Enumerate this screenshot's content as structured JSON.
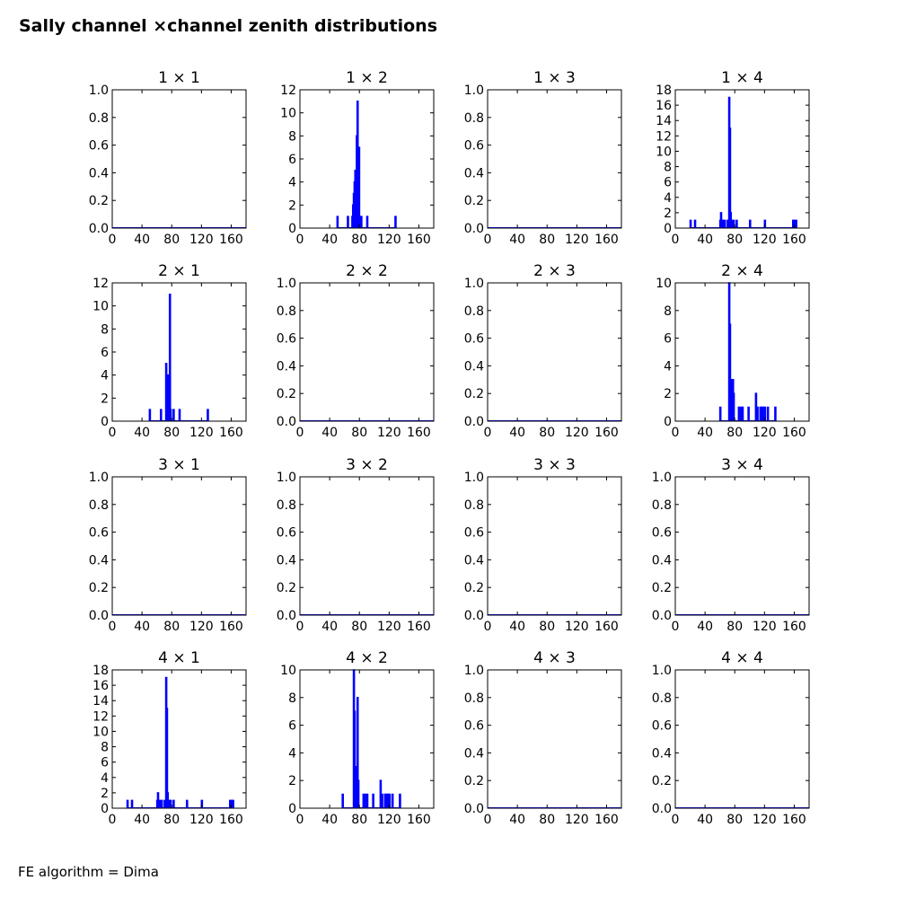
{
  "figure": {
    "title": "Sally channel ×channel zenith distributions",
    "footer": "FE algorithm = Dima"
  },
  "colors": {
    "hist": "#0000ff",
    "axis": "#000000"
  },
  "chart_data": [
    {
      "type": "bar",
      "title": "1  × 1",
      "xlim": [
        0,
        180
      ],
      "ylim": [
        0,
        1.0
      ],
      "xticks": [
        "0",
        "40",
        "80",
        "120",
        "160"
      ],
      "yticks": [
        "0.0",
        "0.2",
        "0.4",
        "0.6",
        "0.8",
        "1.0"
      ],
      "bins": []
    },
    {
      "type": "bar",
      "title": "1  × 2",
      "xlim": [
        0,
        180
      ],
      "ylim": [
        0,
        12
      ],
      "xticks": [
        "0",
        "40",
        "80",
        "120",
        "160"
      ],
      "yticks": [
        "0",
        "2",
        "4",
        "6",
        "8",
        "10",
        "12"
      ],
      "bins": [
        [
          50,
          1
        ],
        [
          64,
          1
        ],
        [
          70,
          1
        ],
        [
          71,
          2
        ],
        [
          72,
          3
        ],
        [
          73,
          4
        ],
        [
          74,
          5
        ],
        [
          75,
          4
        ],
        [
          76,
          8
        ],
        [
          77,
          11
        ],
        [
          78,
          6
        ],
        [
          79,
          7
        ],
        [
          80,
          1
        ],
        [
          82,
          1
        ],
        [
          90,
          1
        ],
        [
          128,
          1
        ]
      ]
    },
    {
      "type": "bar",
      "title": "1  × 3",
      "xlim": [
        0,
        180
      ],
      "ylim": [
        0,
        1.0
      ],
      "xticks": [
        "0",
        "40",
        "80",
        "120",
        "160"
      ],
      "yticks": [
        "0.0",
        "0.2",
        "0.4",
        "0.6",
        "0.8",
        "1.0"
      ],
      "bins": []
    },
    {
      "type": "bar",
      "title": "1  × 4",
      "xlim": [
        0,
        180
      ],
      "ylim": [
        0,
        18
      ],
      "xticks": [
        "0",
        "40",
        "80",
        "120",
        "160"
      ],
      "yticks": [
        "0",
        "2",
        "4",
        "6",
        "8",
        "10",
        "12",
        "14",
        "16",
        "18"
      ],
      "bins": [
        [
          20,
          1
        ],
        [
          26,
          1
        ],
        [
          60,
          1
        ],
        [
          61,
          2
        ],
        [
          62,
          1
        ],
        [
          64,
          1
        ],
        [
          66,
          1
        ],
        [
          70,
          1
        ],
        [
          72,
          17
        ],
        [
          73,
          13
        ],
        [
          74,
          2
        ],
        [
          76,
          1
        ],
        [
          78,
          1
        ],
        [
          82,
          1
        ],
        [
          100,
          1
        ],
        [
          120,
          1
        ],
        [
          158,
          1
        ],
        [
          160,
          1
        ],
        [
          162,
          1
        ]
      ]
    },
    {
      "type": "bar",
      "title": "2  × 1",
      "xlim": [
        0,
        180
      ],
      "ylim": [
        0,
        12
      ],
      "xticks": [
        "0",
        "40",
        "80",
        "120",
        "160"
      ],
      "yticks": [
        "0",
        "2",
        "4",
        "6",
        "8",
        "10",
        "12"
      ],
      "bins": [
        [
          50,
          1
        ],
        [
          65,
          1
        ],
        [
          72,
          5
        ],
        [
          73,
          1
        ],
        [
          74,
          4
        ],
        [
          75,
          3
        ],
        [
          77,
          11
        ],
        [
          78,
          1
        ],
        [
          82,
          1
        ],
        [
          90,
          1
        ],
        [
          128,
          1
        ]
      ]
    },
    {
      "type": "bar",
      "title": "2  × 2",
      "xlim": [
        0,
        180
      ],
      "ylim": [
        0,
        1.0
      ],
      "xticks": [
        "0",
        "40",
        "80",
        "120",
        "160"
      ],
      "yticks": [
        "0.0",
        "0.2",
        "0.4",
        "0.6",
        "0.8",
        "1.0"
      ],
      "bins": []
    },
    {
      "type": "bar",
      "title": "2  × 3",
      "xlim": [
        0,
        180
      ],
      "ylim": [
        0,
        1.0
      ],
      "xticks": [
        "0",
        "40",
        "80",
        "120",
        "160"
      ],
      "yticks": [
        "0.0",
        "0.2",
        "0.4",
        "0.6",
        "0.8",
        "1.0"
      ],
      "bins": []
    },
    {
      "type": "bar",
      "title": "2  × 4",
      "xlim": [
        0,
        180
      ],
      "ylim": [
        0,
        10
      ],
      "xticks": [
        "0",
        "40",
        "80",
        "120",
        "160"
      ],
      "yticks": [
        "0",
        "2",
        "4",
        "6",
        "8",
        "10"
      ],
      "bins": [
        [
          60,
          1
        ],
        [
          72,
          10
        ],
        [
          73,
          7
        ],
        [
          74,
          3
        ],
        [
          75,
          2
        ],
        [
          76,
          3
        ],
        [
          77,
          3
        ],
        [
          78,
          2
        ],
        [
          85,
          1
        ],
        [
          88,
          1
        ],
        [
          90,
          1
        ],
        [
          98,
          1
        ],
        [
          108,
          2
        ],
        [
          110,
          1
        ],
        [
          114,
          1
        ],
        [
          116,
          1
        ],
        [
          118,
          1
        ],
        [
          120,
          1
        ],
        [
          124,
          1
        ],
        [
          134,
          1
        ]
      ]
    },
    {
      "type": "bar",
      "title": "3  × 1",
      "xlim": [
        0,
        180
      ],
      "ylim": [
        0,
        1.0
      ],
      "xticks": [
        "0",
        "40",
        "80",
        "120",
        "160"
      ],
      "yticks": [
        "0.0",
        "0.2",
        "0.4",
        "0.6",
        "0.8",
        "1.0"
      ],
      "bins": []
    },
    {
      "type": "bar",
      "title": "3  × 2",
      "xlim": [
        0,
        180
      ],
      "ylim": [
        0,
        1.0
      ],
      "xticks": [
        "0",
        "40",
        "80",
        "120",
        "160"
      ],
      "yticks": [
        "0.0",
        "0.2",
        "0.4",
        "0.6",
        "0.8",
        "1.0"
      ],
      "bins": []
    },
    {
      "type": "bar",
      "title": "3  × 3",
      "xlim": [
        0,
        180
      ],
      "ylim": [
        0,
        1.0
      ],
      "xticks": [
        "0",
        "40",
        "80",
        "120",
        "160"
      ],
      "yticks": [
        "0.0",
        "0.2",
        "0.4",
        "0.6",
        "0.8",
        "1.0"
      ],
      "bins": []
    },
    {
      "type": "bar",
      "title": "3  × 4",
      "xlim": [
        0,
        180
      ],
      "ylim": [
        0,
        1.0
      ],
      "xticks": [
        "0",
        "40",
        "80",
        "120",
        "160"
      ],
      "yticks": [
        "0.0",
        "0.2",
        "0.4",
        "0.6",
        "0.8",
        "1.0"
      ],
      "bins": []
    },
    {
      "type": "bar",
      "title": "4  × 1",
      "xlim": [
        0,
        180
      ],
      "ylim": [
        0,
        18
      ],
      "xticks": [
        "0",
        "40",
        "80",
        "120",
        "160"
      ],
      "yticks": [
        "0",
        "2",
        "4",
        "6",
        "8",
        "10",
        "12",
        "14",
        "16",
        "18"
      ],
      "bins": [
        [
          20,
          1
        ],
        [
          26,
          1
        ],
        [
          60,
          1
        ],
        [
          61,
          2
        ],
        [
          62,
          1
        ],
        [
          64,
          1
        ],
        [
          66,
          1
        ],
        [
          70,
          1
        ],
        [
          72,
          17
        ],
        [
          73,
          13
        ],
        [
          74,
          2
        ],
        [
          76,
          1
        ],
        [
          78,
          1
        ],
        [
          82,
          1
        ],
        [
          100,
          1
        ],
        [
          120,
          1
        ],
        [
          158,
          1
        ],
        [
          160,
          1
        ],
        [
          162,
          1
        ]
      ]
    },
    {
      "type": "bar",
      "title": "4  × 2",
      "xlim": [
        0,
        180
      ],
      "ylim": [
        0,
        10
      ],
      "xticks": [
        "0",
        "40",
        "80",
        "120",
        "160"
      ],
      "yticks": [
        "0",
        "2",
        "4",
        "6",
        "8",
        "10"
      ],
      "bins": [
        [
          57,
          1
        ],
        [
          72,
          10
        ],
        [
          73,
          7
        ],
        [
          74,
          3
        ],
        [
          75,
          1
        ],
        [
          77,
          8
        ],
        [
          78,
          2
        ],
        [
          85,
          1
        ],
        [
          88,
          1
        ],
        [
          90,
          1
        ],
        [
          98,
          1
        ],
        [
          108,
          2
        ],
        [
          110,
          1
        ],
        [
          114,
          1
        ],
        [
          116,
          1
        ],
        [
          118,
          1
        ],
        [
          120,
          1
        ],
        [
          124,
          1
        ],
        [
          134,
          1
        ]
      ]
    },
    {
      "type": "bar",
      "title": "4  × 3",
      "xlim": [
        0,
        180
      ],
      "ylim": [
        0,
        1.0
      ],
      "xticks": [
        "0",
        "40",
        "80",
        "120",
        "160"
      ],
      "yticks": [
        "0.0",
        "0.2",
        "0.4",
        "0.6",
        "0.8",
        "1.0"
      ],
      "bins": []
    },
    {
      "type": "bar",
      "title": "4  × 4",
      "xlim": [
        0,
        180
      ],
      "ylim": [
        0,
        1.0
      ],
      "xticks": [
        "0",
        "40",
        "80",
        "120",
        "160"
      ],
      "yticks": [
        "0.0",
        "0.2",
        "0.4",
        "0.6",
        "0.8",
        "1.0"
      ],
      "bins": []
    }
  ]
}
